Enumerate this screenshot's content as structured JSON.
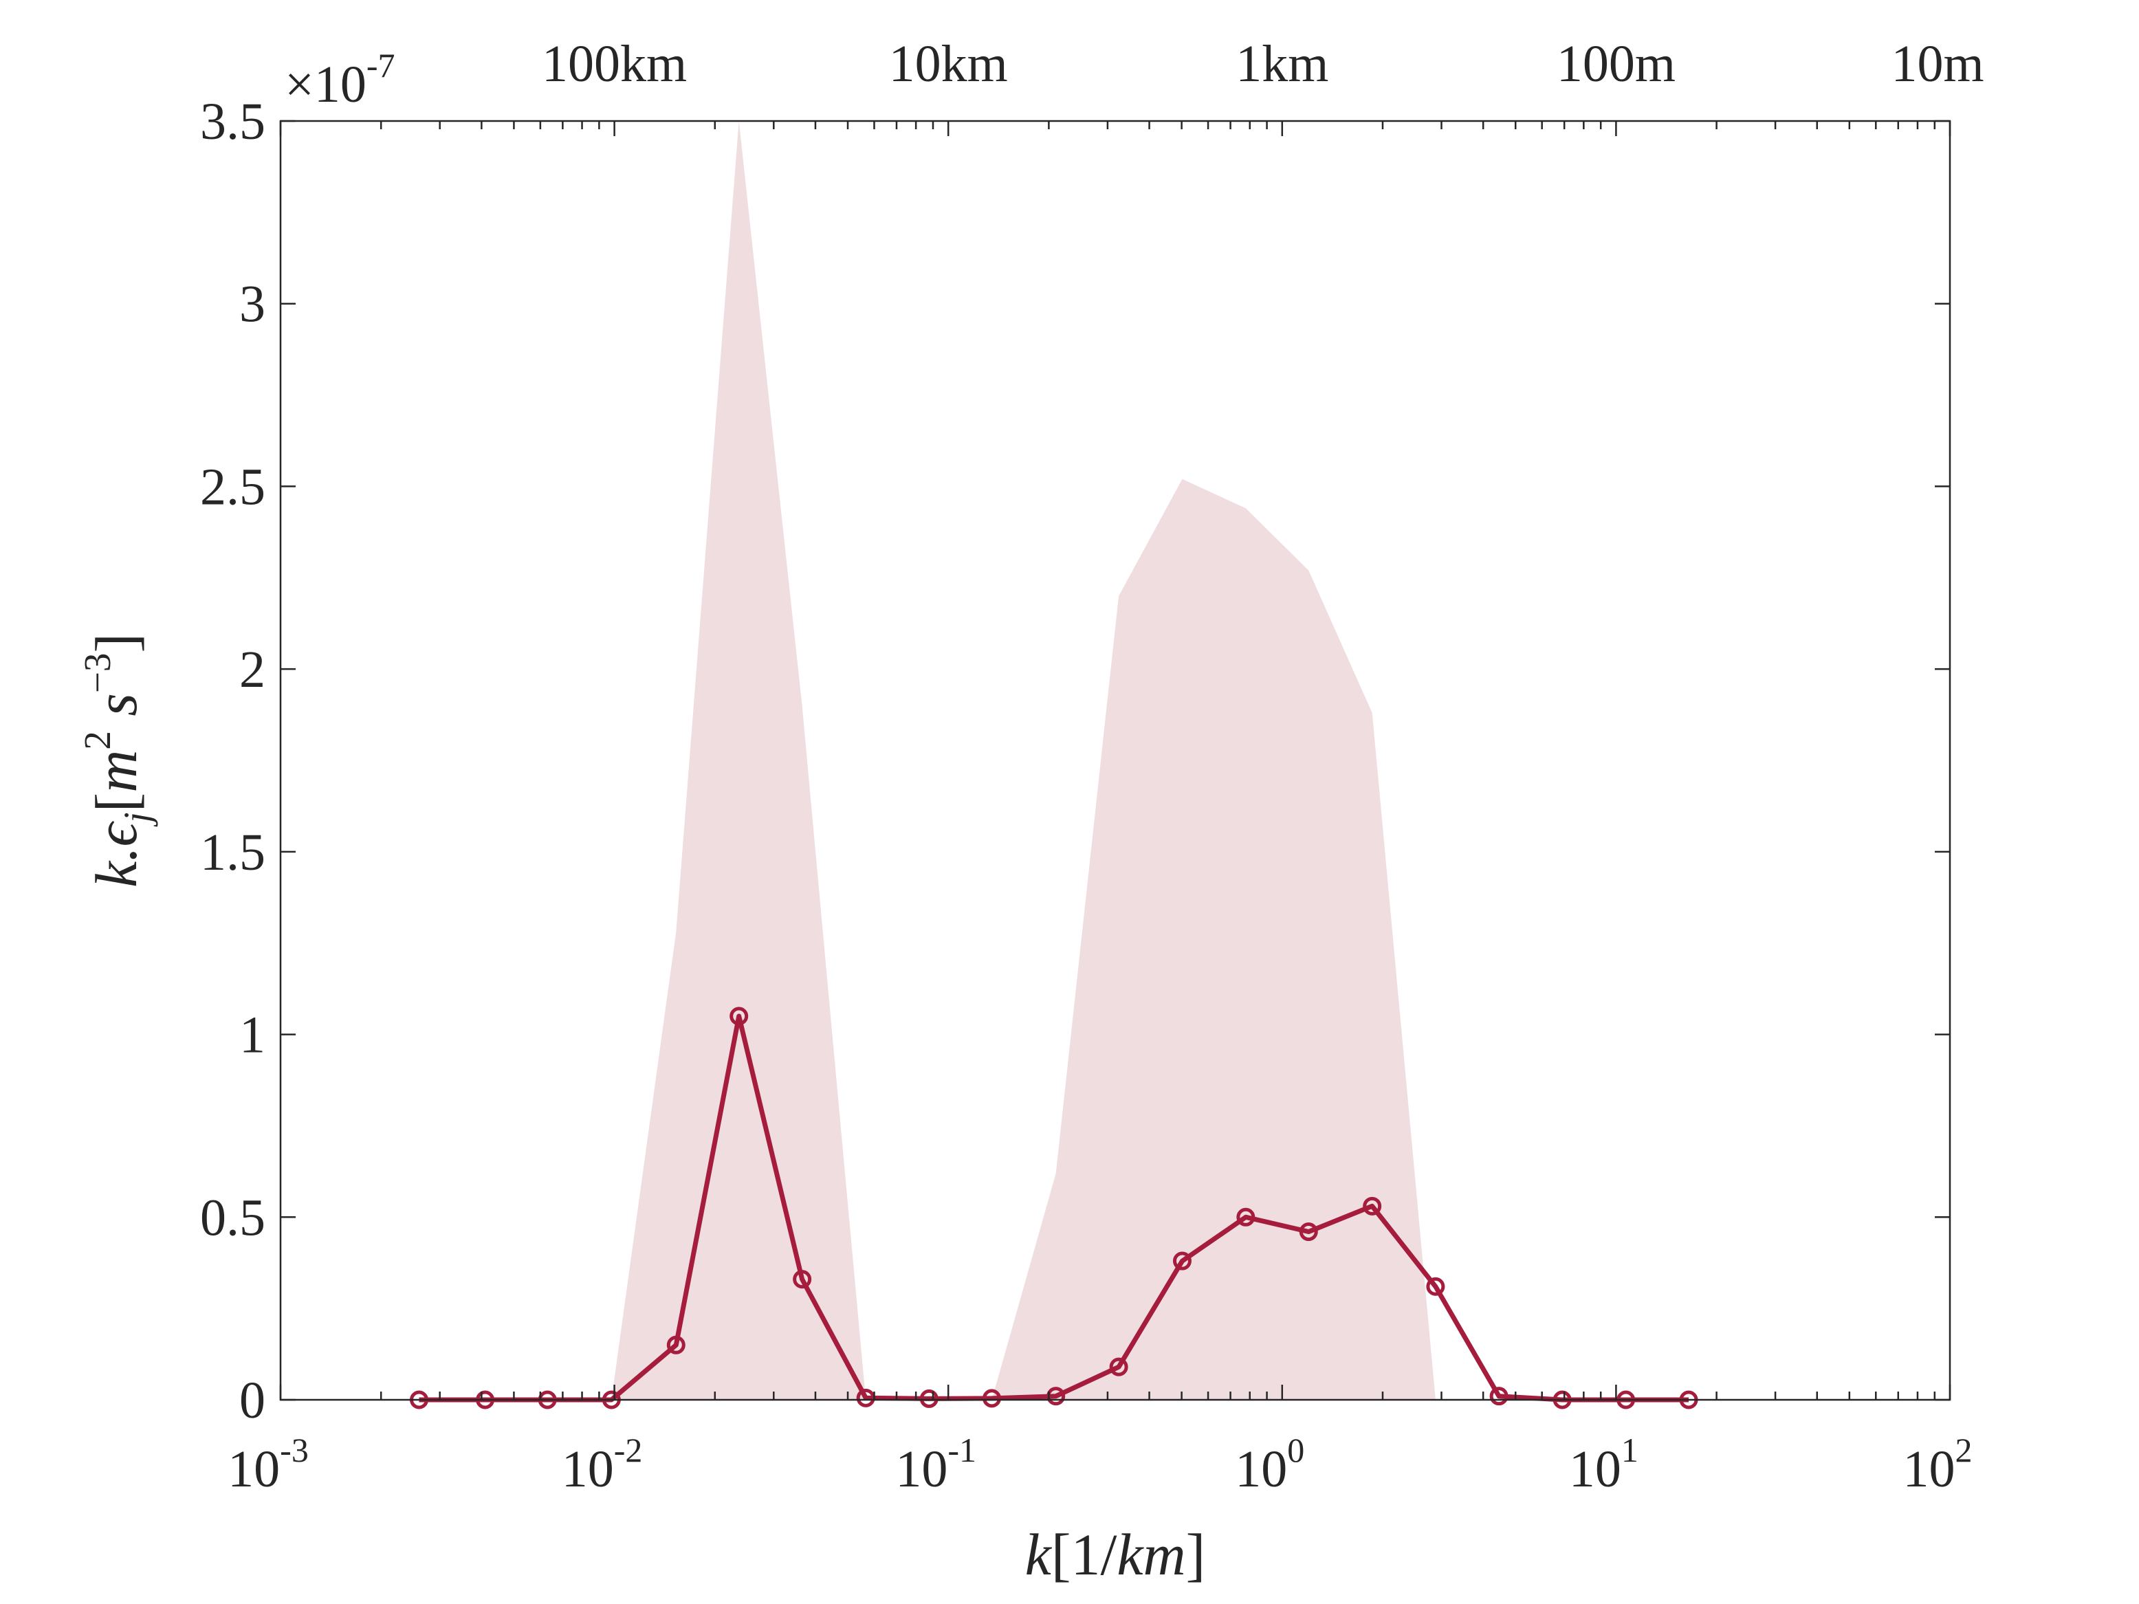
{
  "chart_data": {
    "type": "line",
    "xscale": "log",
    "xlim": [
      0.001,
      100
    ],
    "ylim": [
      0,
      3.5e-07
    ],
    "xlabel": "k[1/km]",
    "ylabel": "k.ϵ_j[m^2 s^-3]",
    "y_multiplier": "×10-7",
    "yticks": [
      0,
      0.5,
      1,
      1.5,
      2,
      2.5,
      3,
      3.5
    ],
    "ytick_labels": [
      "0",
      "0.5",
      "1",
      "1.5",
      "2",
      "2.5",
      "3",
      "3.5"
    ],
    "xticks": [
      0.001,
      0.01,
      0.1,
      1,
      10,
      100
    ],
    "xtick_labels": [
      {
        "base": "10",
        "exp": "-3"
      },
      {
        "base": "10",
        "exp": "-2"
      },
      {
        "base": "10",
        "exp": "-1"
      },
      {
        "base": "10",
        "exp": "0"
      },
      {
        "base": "10",
        "exp": "1"
      },
      {
        "base": "10",
        "exp": "2"
      }
    ],
    "top_axis": {
      "ticks": [
        0.01,
        0.1,
        1,
        10,
        100
      ],
      "labels": [
        "100km",
        "10km",
        "1km",
        "100m",
        "10m"
      ]
    },
    "series": [
      {
        "type": "line",
        "color": "#A51C3C",
        "marker": "circle",
        "x": [
          0.0026,
          0.0041,
          0.0063,
          0.0098,
          0.0153,
          0.0236,
          0.0365,
          0.0566,
          0.0876,
          0.135,
          0.21,
          0.324,
          0.502,
          0.778,
          1.2,
          1.86,
          2.88,
          4.46,
          6.9,
          10.7,
          16.5
        ],
        "values": [
          0,
          0,
          0,
          0,
          1.5e-08,
          1.05e-07,
          3.3e-08,
          5e-10,
          3e-10,
          4e-10,
          1e-09,
          9e-09,
          3.8e-08,
          5e-08,
          4.6e-08,
          5.3e-08,
          3.1e-08,
          1e-09,
          0,
          0,
          0
        ]
      }
    ],
    "band": {
      "color": "#F0DDE0",
      "x": [
        0.0098,
        0.0153,
        0.0236,
        0.0365,
        0.0566,
        0.135,
        0.21,
        0.324,
        0.502,
        0.778,
        1.2,
        1.86,
        2.88,
        4.46
      ],
      "upper": [
        0,
        1.28e-07,
        3.5e-07,
        1.9e-07,
        0,
        0,
        6.2e-08,
        2.2e-07,
        2.52e-07,
        2.44e-07,
        2.27e-07,
        1.88e-07,
        0,
        0
      ],
      "lower": [
        0,
        0,
        0,
        0,
        0,
        0,
        0,
        0,
        0,
        0,
        0,
        0,
        0,
        0
      ]
    }
  }
}
